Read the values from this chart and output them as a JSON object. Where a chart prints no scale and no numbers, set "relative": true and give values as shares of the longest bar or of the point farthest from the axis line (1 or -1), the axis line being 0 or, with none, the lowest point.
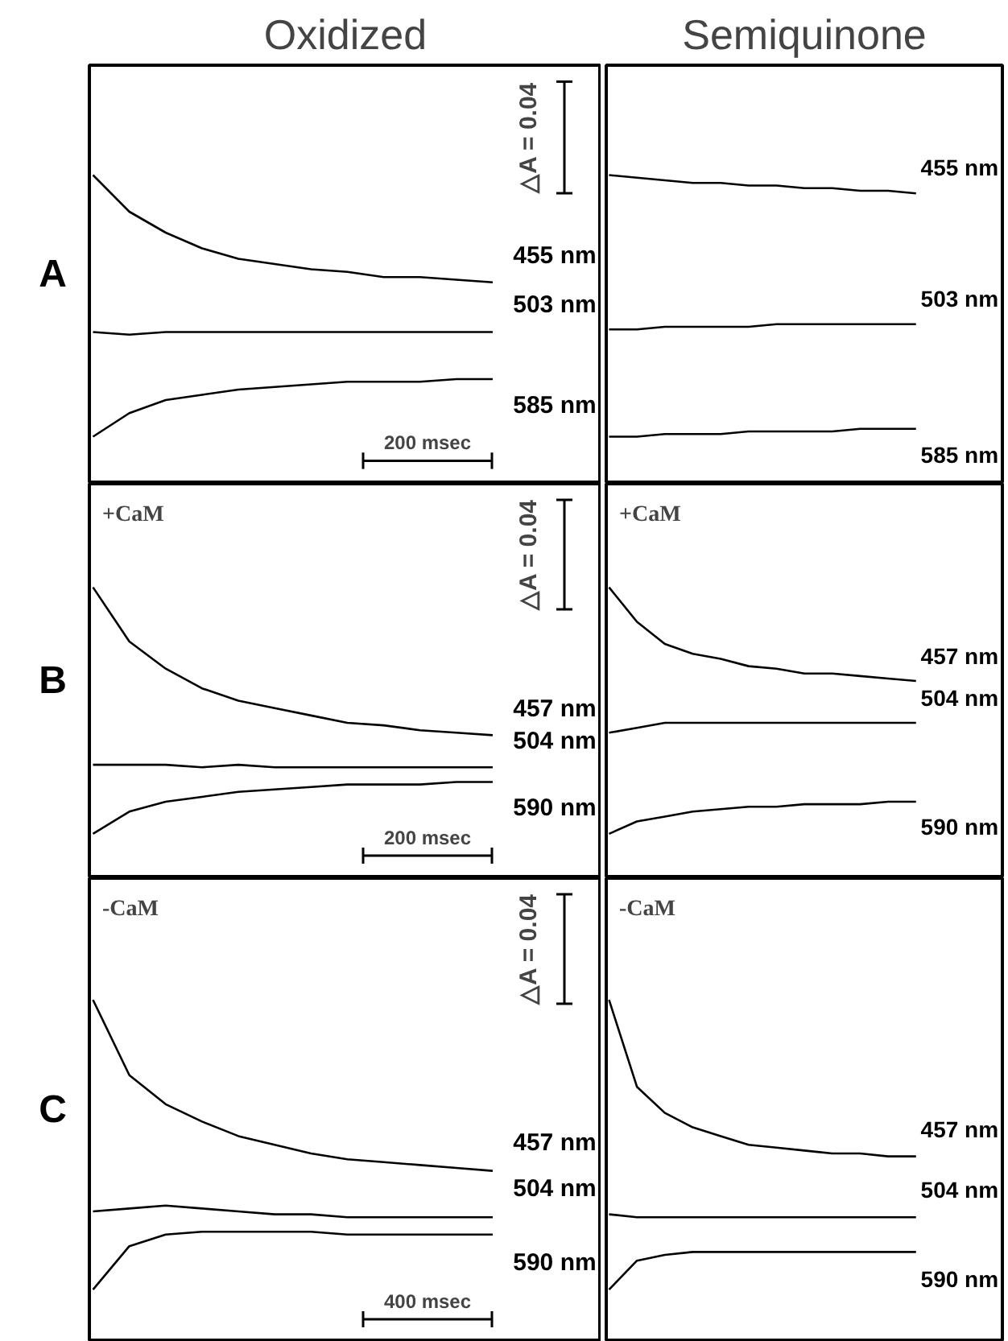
{
  "chart_data": [
    {
      "type": "line",
      "title": "Oxidized",
      "relative": true,
      "categories": [
        null,
        null,
        null,
        null,
        null,
        null,
        null,
        null,
        null,
        null,
        null,
        null
      ],
      "annotations": [
        "A",
        "△A = 0.04",
        "200 msec"
      ],
      "series": [
        {
          "name": "455 nm",
          "color": "#000000",
          "values": [
            1.0,
            0.86,
            0.78,
            0.72,
            0.68,
            0.66,
            0.64,
            0.63,
            0.61,
            0.61,
            0.6,
            0.59
          ]
        },
        {
          "name": "503 nm",
          "color": "#000000",
          "values": [
            0.4,
            0.39,
            0.4,
            0.4,
            0.4,
            0.4,
            0.4,
            0.4,
            0.4,
            0.4,
            0.4,
            0.4
          ]
        },
        {
          "name": "585 nm",
          "color": "#000000",
          "values": [
            0.0,
            0.09,
            0.14,
            0.16,
            0.18,
            0.19,
            0.2,
            0.21,
            0.21,
            0.21,
            0.22,
            0.22
          ]
        }
      ]
    },
    {
      "type": "line",
      "title": "Semiquinone",
      "relative": true,
      "categories": [
        null,
        null,
        null,
        null,
        null,
        null,
        null,
        null,
        null,
        null,
        null,
        null
      ],
      "series": [
        {
          "name": "455 nm",
          "color": "#000000",
          "values": [
            1.0,
            0.99,
            0.98,
            0.97,
            0.97,
            0.96,
            0.96,
            0.95,
            0.95,
            0.94,
            0.94,
            0.93
          ]
        },
        {
          "name": "503 nm",
          "color": "#000000",
          "values": [
            0.41,
            0.41,
            0.42,
            0.42,
            0.42,
            0.42,
            0.43,
            0.43,
            0.43,
            0.43,
            0.43,
            0.43
          ]
        },
        {
          "name": "585 nm",
          "color": "#000000",
          "values": [
            0.0,
            0.0,
            0.01,
            0.01,
            0.01,
            0.02,
            0.02,
            0.02,
            0.02,
            0.03,
            0.03,
            0.03
          ]
        }
      ]
    },
    {
      "type": "line",
      "relative": true,
      "categories": [
        null,
        null,
        null,
        null,
        null,
        null,
        null,
        null,
        null,
        null,
        null,
        null
      ],
      "annotations": [
        "B",
        "+CaM",
        "△A = 0.04",
        "200 msec"
      ],
      "series": [
        {
          "name": "457 nm",
          "color": "#000000",
          "values": [
            1.0,
            0.78,
            0.67,
            0.59,
            0.54,
            0.51,
            0.48,
            0.45,
            0.44,
            0.42,
            0.41,
            0.4
          ]
        },
        {
          "name": "504 nm",
          "color": "#000000",
          "values": [
            0.28,
            0.28,
            0.28,
            0.27,
            0.28,
            0.27,
            0.27,
            0.27,
            0.27,
            0.27,
            0.27,
            0.27
          ]
        },
        {
          "name": "590 nm",
          "color": "#000000",
          "values": [
            0.0,
            0.09,
            0.13,
            0.15,
            0.17,
            0.18,
            0.19,
            0.2,
            0.2,
            0.2,
            0.21,
            0.21
          ]
        }
      ]
    },
    {
      "type": "line",
      "relative": true,
      "categories": [
        null,
        null,
        null,
        null,
        null,
        null,
        null,
        null,
        null,
        null,
        null,
        null
      ],
      "annotations": [
        "+CaM"
      ],
      "series": [
        {
          "name": "457 nm",
          "color": "#000000",
          "values": [
            1.0,
            0.86,
            0.77,
            0.73,
            0.71,
            0.68,
            0.67,
            0.65,
            0.65,
            0.64,
            0.63,
            0.62
          ]
        },
        {
          "name": "504 nm",
          "color": "#000000",
          "values": [
            0.41,
            0.43,
            0.45,
            0.45,
            0.45,
            0.45,
            0.45,
            0.45,
            0.45,
            0.45,
            0.45,
            0.45
          ]
        },
        {
          "name": "590 nm",
          "color": "#000000",
          "values": [
            0.0,
            0.05,
            0.07,
            0.09,
            0.1,
            0.11,
            0.11,
            0.12,
            0.12,
            0.12,
            0.13,
            0.13
          ]
        }
      ]
    },
    {
      "type": "line",
      "relative": true,
      "categories": [
        null,
        null,
        null,
        null,
        null,
        null,
        null,
        null,
        null,
        null,
        null,
        null
      ],
      "annotations": [
        "C",
        "-CaM",
        "△A = 0.04",
        "400 msec"
      ],
      "series": [
        {
          "name": "457 nm",
          "color": "#000000",
          "values": [
            1.0,
            0.74,
            0.64,
            0.58,
            0.53,
            0.5,
            0.47,
            0.45,
            0.44,
            0.43,
            0.42,
            0.41
          ]
        },
        {
          "name": "504 nm",
          "color": "#000000",
          "values": [
            0.27,
            0.28,
            0.29,
            0.28,
            0.27,
            0.26,
            0.26,
            0.25,
            0.25,
            0.25,
            0.25,
            0.25
          ]
        },
        {
          "name": "590 nm",
          "color": "#000000",
          "values": [
            0.0,
            0.15,
            0.19,
            0.2,
            0.2,
            0.2,
            0.2,
            0.19,
            0.19,
            0.19,
            0.19,
            0.19
          ]
        }
      ]
    },
    {
      "type": "line",
      "relative": true,
      "categories": [
        null,
        null,
        null,
        null,
        null,
        null,
        null,
        null,
        null,
        null,
        null,
        null
      ],
      "annotations": [
        "-CaM"
      ],
      "series": [
        {
          "name": "457 nm",
          "color": "#000000",
          "values": [
            1.0,
            0.7,
            0.61,
            0.56,
            0.53,
            0.5,
            0.49,
            0.48,
            0.47,
            0.47,
            0.46,
            0.46
          ]
        },
        {
          "name": "504 nm",
          "color": "#000000",
          "values": [
            0.26,
            0.25,
            0.25,
            0.25,
            0.25,
            0.25,
            0.25,
            0.25,
            0.25,
            0.25,
            0.25,
            0.25
          ]
        },
        {
          "name": "590 nm",
          "color": "#000000",
          "values": [
            0.0,
            0.1,
            0.12,
            0.13,
            0.13,
            0.13,
            0.13,
            0.13,
            0.13,
            0.13,
            0.13,
            0.13
          ]
        }
      ]
    }
  ]
}
